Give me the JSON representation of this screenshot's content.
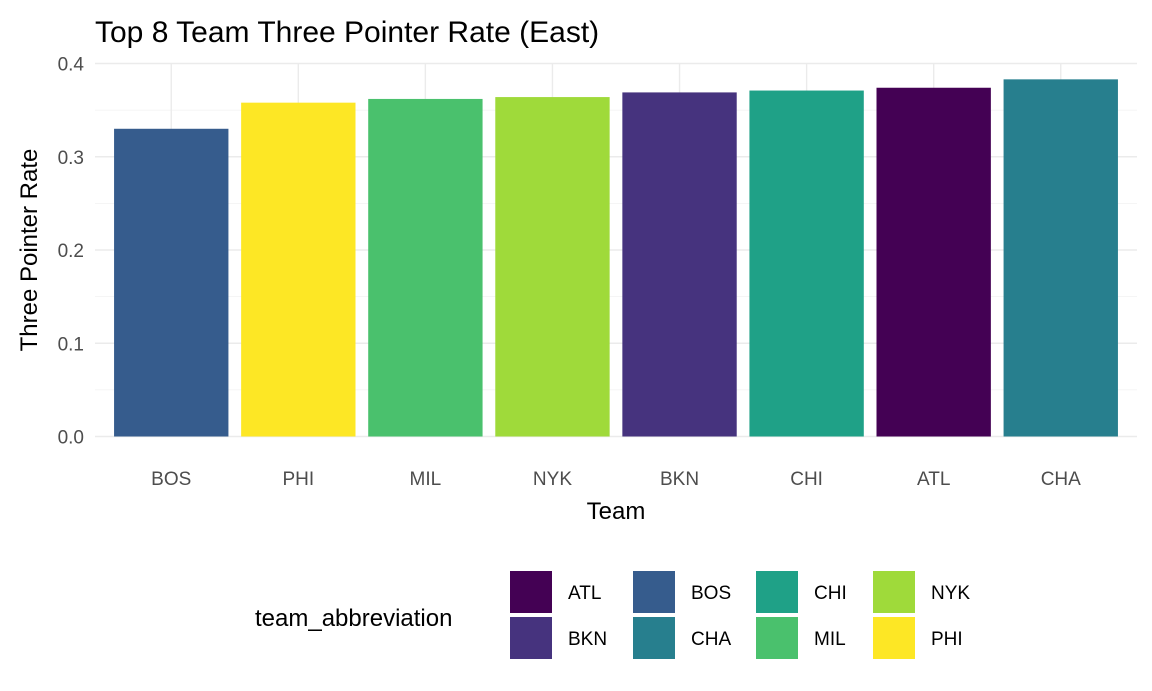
{
  "chart_data": {
    "type": "bar",
    "title": "Top 8 Team Three Pointer Rate (East)",
    "xlabel": "Team",
    "ylabel": "Three Pointer Rate",
    "categories": [
      "BOS",
      "PHI",
      "MIL",
      "NYK",
      "BKN",
      "CHI",
      "ATL",
      "CHA"
    ],
    "values": [
      0.33,
      0.358,
      0.362,
      0.364,
      0.369,
      0.371,
      0.374,
      0.383
    ],
    "ylim": [
      0,
      0.4
    ],
    "yticks": [
      "0.0",
      "0.1",
      "0.2",
      "0.3",
      "0.4"
    ],
    "grid": true,
    "colors": {
      "ATL": "#440154",
      "BKN": "#46337E",
      "BOS": "#365C8D",
      "CHA": "#277F8E",
      "CHI": "#1FA187",
      "MIL": "#4AC16D",
      "NYK": "#9FDA3A",
      "PHI": "#FDE725"
    },
    "legend": {
      "title": "team_abbreviation",
      "placement": "bottom",
      "entries": [
        "ATL",
        "BKN",
        "BOS",
        "CHA",
        "CHI",
        "MIL",
        "NYK",
        "PHI"
      ]
    }
  }
}
